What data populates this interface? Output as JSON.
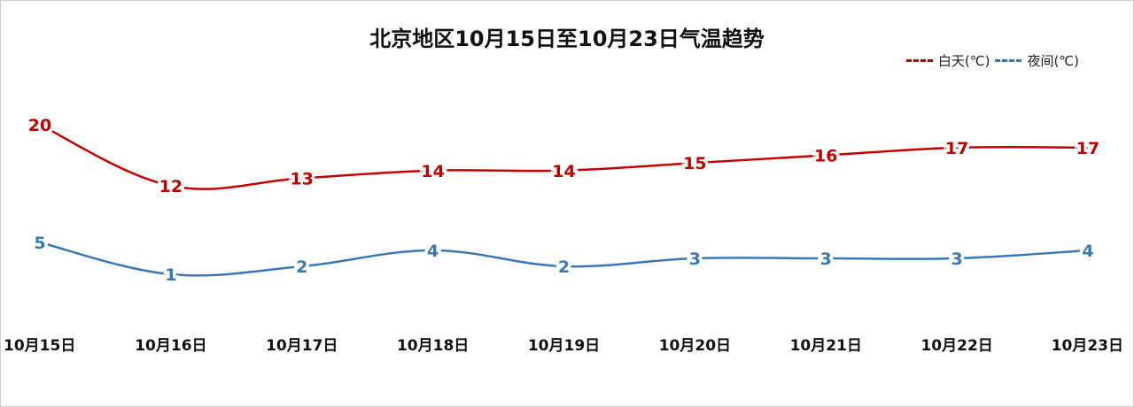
{
  "chart_data": {
    "type": "line",
    "title": "北京地区10月15日至10月23日气温趋势",
    "categories": [
      "10月15日",
      "10月16日",
      "10月17日",
      "10月18日",
      "10月19日",
      "10月20日",
      "10月21日",
      "10月22日",
      "10月23日"
    ],
    "series": [
      {
        "name": "白天(℃)",
        "color": "#c00000",
        "values": [
          20,
          12,
          13,
          14,
          14,
          15,
          16,
          17,
          17
        ]
      },
      {
        "name": "夜间(℃)",
        "color": "#3a78b5",
        "values": [
          5,
          1,
          2,
          4,
          2,
          3,
          3,
          3,
          4
        ]
      }
    ],
    "legend_position": "top-right",
    "grid": false
  }
}
